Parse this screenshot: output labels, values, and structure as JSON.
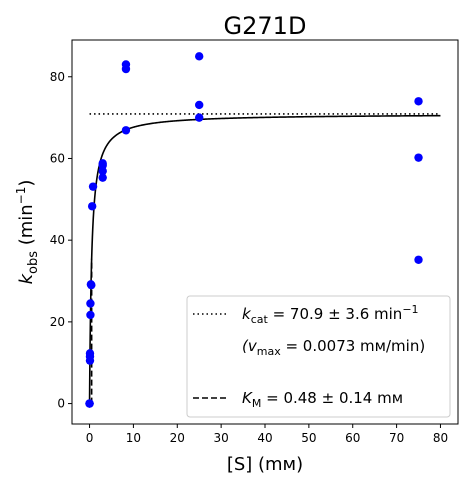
{
  "chart_data": {
    "type": "scatter",
    "title": "G271D",
    "xlabel": "[S] (mᴍ)",
    "ylabel": {
      "main": "k",
      "sub": "obs",
      "unit_open": " (min",
      "unit_sup": "−1",
      "unit_close": ")"
    },
    "xlim": [
      -4,
      84
    ],
    "ylim": [
      -5,
      89
    ],
    "xticks": [
      0,
      10,
      20,
      30,
      40,
      50,
      60,
      70,
      80
    ],
    "yticks": [
      0,
      20,
      40,
      60,
      80
    ],
    "grid": false,
    "legend_position": "lower-right",
    "colors": {
      "points": "#0000ff",
      "fit": "#000000",
      "kcat_line": "#000000",
      "km_line": "#000000"
    },
    "series": [
      {
        "kind": "scatter",
        "x": [
          0,
          0,
          0,
          0.1,
          0.1,
          0.1,
          0.2,
          0.2,
          0.3,
          0.4,
          0.6,
          0.8,
          3,
          3,
          3,
          3,
          8.3,
          8.3,
          8.3,
          25,
          25,
          25,
          75,
          75,
          75
        ],
        "y": [
          0,
          0,
          0,
          10.5,
          11.5,
          12.3,
          21.7,
          24.5,
          29.2,
          29,
          48.3,
          53.1,
          55.3,
          56.9,
          58.3,
          58.8,
          66.9,
          81.9,
          83,
          70,
          73.1,
          85,
          35.2,
          60.2,
          74
        ]
      },
      {
        "kind": "fit",
        "model": "michaelis-menten",
        "kcat": 70.9,
        "km": 0.48,
        "x_range": [
          0,
          80
        ]
      },
      {
        "kind": "hline",
        "y": 70.9,
        "x_range": [
          0,
          80
        ],
        "style": "dotted"
      },
      {
        "kind": "vline",
        "x": 0.48,
        "y_range": [
          0,
          35.45
        ],
        "style": "dashed"
      }
    ],
    "legend": [
      {
        "style": "dotted",
        "lines": [
          {
            "pre": "k",
            "sub": "cat",
            "mid": " = 70.9 ± 3.6 min",
            "sup": "−1"
          },
          {
            "pre": "(v",
            "sub": "max",
            "mid": " = 0.0073 mᴍ/min)",
            "sup": ""
          }
        ]
      },
      {
        "style": "dashed",
        "lines": [
          {
            "pre": "K",
            "sub": "M",
            "mid": " = 0.48 ± 0.14 mᴍ",
            "sup": ""
          }
        ]
      }
    ]
  }
}
